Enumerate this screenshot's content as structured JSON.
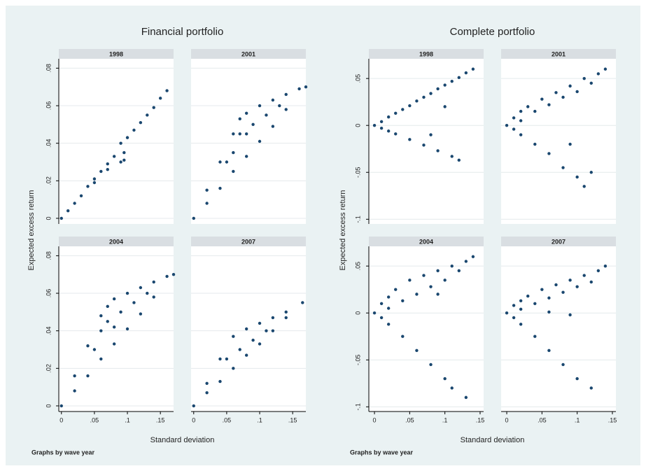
{
  "chart_data": [
    {
      "type": "scatter",
      "title": "Financial portfolio",
      "xlabel": "Standard deviation",
      "ylabel": "Expected excess return",
      "note": "Graphs by wave year",
      "color": "#1a476f",
      "grid": true,
      "xlim": [
        -0.004,
        0.17
      ],
      "ylim": [
        -0.003,
        0.085
      ],
      "xticks": [
        0,
        {
          "value": 0.05,
          "label": ".05"
        },
        {
          "value": 0.1,
          "label": ".1"
        },
        {
          "value": 0.15,
          "label": ".15"
        }
      ],
      "yticks": [
        0,
        {
          "value": 0.02,
          "label": ".02"
        },
        {
          "value": 0.04,
          "label": ".04"
        },
        {
          "value": 0.06,
          "label": ".06"
        },
        {
          "value": 0.08,
          "label": ".08"
        }
      ],
      "panels": [
        {
          "title": "1998",
          "x": [
            0,
            0.01,
            0.02,
            0.03,
            0.04,
            0.05,
            0.06,
            0.07,
            0.08,
            0.09,
            0.095,
            0.1,
            0.11,
            0.12,
            0.13,
            0.14,
            0.15,
            0.16,
            0.05,
            0.07,
            0.09,
            0.095
          ],
          "y": [
            0,
            0.004,
            0.008,
            0.012,
            0.017,
            0.021,
            0.025,
            0.029,
            0.033,
            0.04,
            0.031,
            0.043,
            0.047,
            0.051,
            0.055,
            0.059,
            0.064,
            0.068,
            0.019,
            0.026,
            0.03,
            0.035
          ]
        },
        {
          "title": "2001",
          "x": [
            0,
            0.02,
            0.04,
            0.06,
            0.07,
            0.08,
            0.1,
            0.12,
            0.14,
            0.16,
            0.17,
            0.02,
            0.04,
            0.06,
            0.08,
            0.1,
            0.12,
            0.14,
            0.05,
            0.06,
            0.07,
            0.08,
            0.09,
            0.11,
            0.13
          ],
          "y": [
            0,
            0.015,
            0.03,
            0.045,
            0.053,
            0.056,
            0.06,
            0.063,
            0.066,
            0.069,
            0.07,
            0.008,
            0.016,
            0.025,
            0.033,
            0.041,
            0.049,
            0.058,
            0.03,
            0.035,
            0.045,
            0.045,
            0.05,
            0.055,
            0.06
          ]
        },
        {
          "title": "2004",
          "x": [
            0,
            0.02,
            0.04,
            0.06,
            0.07,
            0.08,
            0.1,
            0.12,
            0.14,
            0.16,
            0.17,
            0.02,
            0.04,
            0.06,
            0.08,
            0.1,
            0.12,
            0.14,
            0.05,
            0.06,
            0.07,
            0.08,
            0.09,
            0.11,
            0.13
          ],
          "y": [
            0,
            0.016,
            0.032,
            0.048,
            0.053,
            0.057,
            0.06,
            0.063,
            0.066,
            0.069,
            0.07,
            0.008,
            0.016,
            0.025,
            0.033,
            0.041,
            0.049,
            0.058,
            0.03,
            0.04,
            0.045,
            0.042,
            0.05,
            0.055,
            0.06
          ]
        },
        {
          "title": "2007",
          "x": [
            0,
            0.02,
            0.04,
            0.06,
            0.08,
            0.1,
            0.12,
            0.14,
            0.165,
            0.02,
            0.04,
            0.06,
            0.08,
            0.1,
            0.12,
            0.14,
            0.05,
            0.07,
            0.09,
            0.11
          ],
          "y": [
            0,
            0.012,
            0.025,
            0.037,
            0.041,
            0.044,
            0.047,
            0.05,
            0.055,
            0.007,
            0.013,
            0.02,
            0.027,
            0.033,
            0.04,
            0.047,
            0.025,
            0.03,
            0.035,
            0.04
          ]
        }
      ]
    },
    {
      "type": "scatter",
      "title": "Complete portfolio",
      "xlabel": "Standard deviation",
      "ylabel": "Expected excess return",
      "note": "Graphs by wave year",
      "color": "#1a476f",
      "grid": true,
      "xlim": [
        -0.008,
        0.155
      ],
      "ylim": [
        -0.105,
        0.071
      ],
      "xticks": [
        0,
        {
          "value": 0.05,
          "label": ".05"
        },
        {
          "value": 0.1,
          "label": ".1"
        },
        {
          "value": 0.15,
          "label": ".15"
        }
      ],
      "yticks": [
        {
          "value": -0.1,
          "label": "-.1"
        },
        {
          "value": -0.05,
          "label": "-.05"
        },
        0,
        {
          "value": 0.05,
          "label": ".05"
        }
      ],
      "panels": [
        {
          "title": "1998",
          "x": [
            0,
            0.01,
            0.02,
            0.03,
            0.04,
            0.05,
            0.06,
            0.07,
            0.08,
            0.09,
            0.1,
            0.11,
            0.12,
            0.13,
            0.14,
            0.01,
            0.02,
            0.03,
            0.05,
            0.07,
            0.09,
            0.11,
            0.12,
            0.1,
            0.08
          ],
          "y": [
            0,
            0.004,
            0.009,
            0.013,
            0.017,
            0.021,
            0.026,
            0.03,
            0.034,
            0.039,
            0.043,
            0.047,
            0.051,
            0.056,
            0.06,
            -0.003,
            -0.006,
            -0.009,
            -0.015,
            -0.021,
            -0.027,
            -0.033,
            -0.037,
            0.02,
            -0.01
          ]
        },
        {
          "title": "2001",
          "x": [
            0,
            0.01,
            0.02,
            0.03,
            0.05,
            0.07,
            0.09,
            0.11,
            0.13,
            0.14,
            0.02,
            0.04,
            0.06,
            0.08,
            0.1,
            0.12,
            0.01,
            0.02,
            0.04,
            0.06,
            0.08,
            0.1,
            0.11,
            0.12,
            0.09
          ],
          "y": [
            0,
            0.008,
            0.015,
            0.02,
            0.028,
            0.035,
            0.042,
            0.05,
            0.055,
            0.06,
            0.005,
            0.015,
            0.022,
            0.03,
            0.036,
            0.045,
            -0.004,
            -0.01,
            -0.02,
            -0.03,
            -0.045,
            -0.055,
            -0.065,
            -0.05,
            -0.02
          ]
        },
        {
          "title": "2004",
          "x": [
            0,
            0.01,
            0.02,
            0.03,
            0.05,
            0.07,
            0.09,
            0.11,
            0.13,
            0.14,
            0.02,
            0.04,
            0.06,
            0.08,
            0.1,
            0.12,
            0.01,
            0.02,
            0.04,
            0.06,
            0.08,
            0.1,
            0.11,
            0.13,
            0.09
          ],
          "y": [
            0,
            0.01,
            0.017,
            0.025,
            0.035,
            0.04,
            0.045,
            0.05,
            0.055,
            0.06,
            0.005,
            0.013,
            0.02,
            0.028,
            0.035,
            0.045,
            -0.005,
            -0.012,
            -0.025,
            -0.04,
            -0.055,
            -0.07,
            -0.08,
            -0.09,
            0.02
          ]
        },
        {
          "title": "2007",
          "x": [
            0,
            0.01,
            0.02,
            0.03,
            0.05,
            0.07,
            0.09,
            0.11,
            0.13,
            0.14,
            0.02,
            0.04,
            0.06,
            0.08,
            0.1,
            0.12,
            0.01,
            0.02,
            0.04,
            0.06,
            0.08,
            0.1,
            0.12,
            0.09,
            0.06
          ],
          "y": [
            0,
            0.008,
            0.013,
            0.018,
            0.025,
            0.03,
            0.035,
            0.04,
            0.045,
            0.05,
            0.004,
            0.01,
            0.016,
            0.022,
            0.028,
            0.033,
            -0.005,
            -0.012,
            -0.025,
            -0.04,
            -0.055,
            -0.07,
            -0.08,
            -0.002,
            0.001
          ]
        }
      ]
    }
  ]
}
